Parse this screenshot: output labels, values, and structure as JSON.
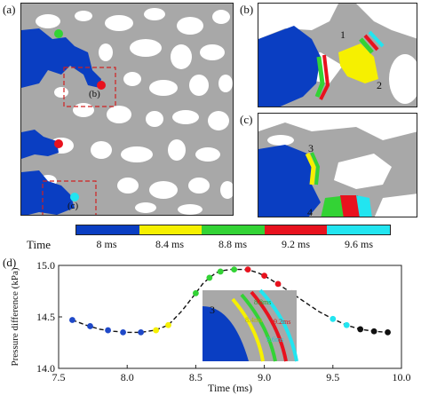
{
  "panels": {
    "a": "(a)",
    "b": "(b)",
    "c": "(c)",
    "d": "(d)",
    "inset_b_box": "(b)",
    "inset_c_box": "(c)"
  },
  "markers": {
    "b_1": "1",
    "b_2": "2",
    "c_3": "3",
    "c_4": "4",
    "d_3": "3"
  },
  "legend": {
    "title": "Time",
    "items": [
      {
        "label": "8 ms",
        "color": "#0a3ec2"
      },
      {
        "label": "8.4 ms",
        "color": "#f6f000"
      },
      {
        "label": "8.8 ms",
        "color": "#33d335"
      },
      {
        "label": "9.2 ms",
        "color": "#e8121e"
      },
      {
        "label": "9.6 ms",
        "color": "#22e5f0"
      }
    ]
  },
  "inset_d_labels": {
    "l1": "8.4ms",
    "l2": "8.8ms",
    "l3": "9.6ms",
    "l4": "9.2ms"
  },
  "colors": {
    "fluid": "#0a3ec2",
    "grain": "#a8a8a8",
    "pore": "#ffffff",
    "dashed_box": "#d02020"
  },
  "chart_data": {
    "type": "line",
    "xlabel": "Time (ms)",
    "ylabel": "Pressure difference (kPa)",
    "xlim": [
      7.5,
      10.0
    ],
    "ylim": [
      14.0,
      15.0
    ],
    "xticks": [
      "7.5",
      "8.0",
      "8.5",
      "9.0",
      "9.5",
      "10.0"
    ],
    "yticks": [
      "14.0",
      "14.5",
      "15.0"
    ],
    "curve_x": [
      7.6,
      7.7,
      7.8,
      7.9,
      8.0,
      8.1,
      8.2,
      8.3,
      8.4,
      8.5,
      8.55,
      8.6,
      8.65,
      8.7,
      8.75,
      8.8,
      8.85,
      8.9,
      8.95,
      9.0,
      9.1,
      9.2,
      9.3,
      9.4,
      9.5,
      9.6,
      9.7,
      9.8,
      9.9
    ],
    "curve_y": [
      14.47,
      14.42,
      14.38,
      14.36,
      14.35,
      14.35,
      14.37,
      14.42,
      14.56,
      14.73,
      14.82,
      14.88,
      14.93,
      14.95,
      14.96,
      14.96,
      14.96,
      14.95,
      14.93,
      14.9,
      14.82,
      14.73,
      14.64,
      14.55,
      14.48,
      14.42,
      14.38,
      14.36,
      14.35
    ],
    "points": [
      {
        "x": 7.6,
        "y": 14.47,
        "color": "#1f49c8"
      },
      {
        "x": 7.73,
        "y": 14.41,
        "color": "#1f49c8"
      },
      {
        "x": 7.86,
        "y": 14.37,
        "color": "#1f49c8"
      },
      {
        "x": 7.97,
        "y": 14.35,
        "color": "#1f49c8"
      },
      {
        "x": 8.1,
        "y": 14.35,
        "color": "#1f49c8"
      },
      {
        "x": 8.21,
        "y": 14.37,
        "color": "#f6f000"
      },
      {
        "x": 8.3,
        "y": 14.42,
        "color": "#f6f000"
      },
      {
        "x": 8.5,
        "y": 14.73,
        "color": "#33d335"
      },
      {
        "x": 8.6,
        "y": 14.88,
        "color": "#33d335"
      },
      {
        "x": 8.68,
        "y": 14.94,
        "color": "#33d335"
      },
      {
        "x": 8.78,
        "y": 14.96,
        "color": "#33d335"
      },
      {
        "x": 8.88,
        "y": 14.96,
        "color": "#e8121e"
      },
      {
        "x": 9.0,
        "y": 14.9,
        "color": "#e8121e"
      },
      {
        "x": 9.1,
        "y": 14.82,
        "color": "#e8121e"
      },
      {
        "x": 9.2,
        "y": 14.73,
        "color": "#e8121e"
      },
      {
        "x": 9.5,
        "y": 14.48,
        "color": "#22e5f0"
      },
      {
        "x": 9.6,
        "y": 14.42,
        "color": "#22e5f0"
      },
      {
        "x": 9.7,
        "y": 14.38,
        "color": "#111111"
      },
      {
        "x": 9.8,
        "y": 14.36,
        "color": "#111111"
      },
      {
        "x": 9.9,
        "y": 14.35,
        "color": "#111111"
      }
    ]
  }
}
